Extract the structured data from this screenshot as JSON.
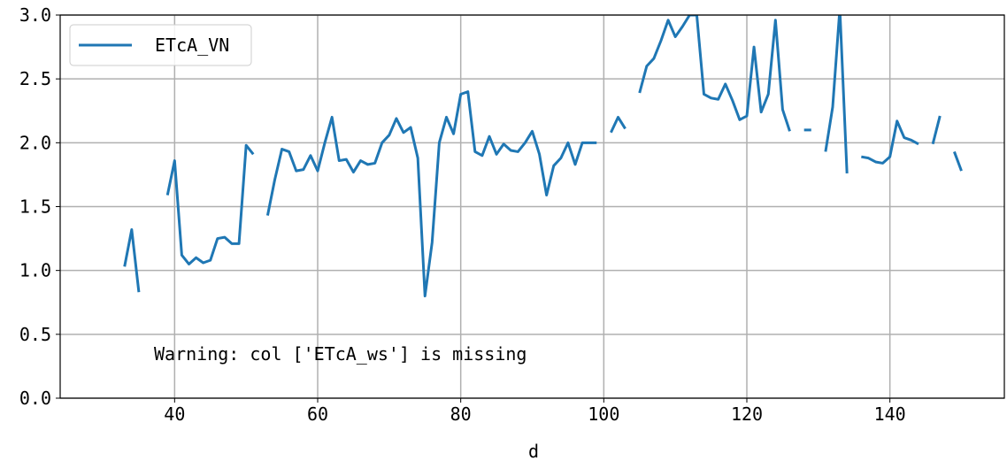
{
  "chart_data": {
    "type": "line",
    "xlabel": "d",
    "ylabel": "",
    "xlim": [
      24,
      156
    ],
    "ylim": [
      0.0,
      3.0
    ],
    "xticks": [
      40,
      60,
      80,
      100,
      120,
      140
    ],
    "yticks": [
      0.0,
      0.5,
      1.0,
      1.5,
      2.0,
      2.5,
      3.0
    ],
    "ytick_labels": [
      "0.0",
      "0.5",
      "1.0",
      "1.5",
      "2.0",
      "2.5",
      "3.0"
    ],
    "grid": true,
    "legend_position": "top-left",
    "annotation": "Warning: col ['ETcA_ws'] is missing",
    "series": [
      {
        "name": "ETcA_VN",
        "color": "#1f77b4",
        "points": [
          [
            33,
            1.03
          ],
          [
            34,
            1.32
          ],
          [
            35,
            0.83
          ],
          [
            36,
            null
          ],
          [
            37,
            null
          ],
          [
            38,
            null
          ],
          [
            39,
            1.59
          ],
          [
            40,
            1.86
          ],
          [
            41,
            1.12
          ],
          [
            42,
            1.05
          ],
          [
            43,
            1.1
          ],
          [
            44,
            1.06
          ],
          [
            45,
            1.08
          ],
          [
            46,
            1.25
          ],
          [
            47,
            1.26
          ],
          [
            48,
            1.21
          ],
          [
            49,
            1.21
          ],
          [
            50,
            1.98
          ],
          [
            51,
            1.91
          ],
          [
            52,
            null
          ],
          [
            53,
            1.43
          ],
          [
            54,
            1.71
          ],
          [
            55,
            1.95
          ],
          [
            56,
            1.93
          ],
          [
            57,
            1.78
          ],
          [
            58,
            1.79
          ],
          [
            59,
            1.9
          ],
          [
            60,
            1.78
          ],
          [
            61,
            2.0
          ],
          [
            62,
            2.2
          ],
          [
            63,
            1.86
          ],
          [
            64,
            1.87
          ],
          [
            65,
            1.77
          ],
          [
            66,
            1.86
          ],
          [
            67,
            1.83
          ],
          [
            68,
            1.84
          ],
          [
            69,
            2.0
          ],
          [
            70,
            2.06
          ],
          [
            71,
            2.19
          ],
          [
            72,
            2.08
          ],
          [
            73,
            2.12
          ],
          [
            74,
            1.88
          ],
          [
            75,
            0.8
          ],
          [
            76,
            1.22
          ],
          [
            77,
            2.0
          ],
          [
            78,
            2.2
          ],
          [
            79,
            2.07
          ],
          [
            80,
            2.38
          ],
          [
            81,
            2.4
          ],
          [
            82,
            1.93
          ],
          [
            83,
            1.9
          ],
          [
            84,
            2.05
          ],
          [
            85,
            1.91
          ],
          [
            86,
            1.99
          ],
          [
            87,
            1.94
          ],
          [
            88,
            1.93
          ],
          [
            89,
            2.0
          ],
          [
            90,
            2.09
          ],
          [
            91,
            1.91
          ],
          [
            92,
            1.59
          ],
          [
            93,
            1.82
          ],
          [
            94,
            1.88
          ],
          [
            95,
            2.0
          ],
          [
            96,
            1.83
          ],
          [
            97,
            2.0
          ],
          [
            98,
            2.0
          ],
          [
            99,
            2.0
          ],
          [
            100,
            null
          ],
          [
            101,
            2.08
          ],
          [
            102,
            2.2
          ],
          [
            103,
            2.11
          ],
          [
            104,
            null
          ],
          [
            105,
            2.39
          ],
          [
            106,
            2.6
          ],
          [
            107,
            2.66
          ],
          [
            108,
            2.8
          ],
          [
            109,
            2.96
          ],
          [
            110,
            2.83
          ],
          [
            111,
            2.91
          ],
          [
            112,
            3.0
          ],
          [
            113,
            3.0
          ],
          [
            114,
            2.38
          ],
          [
            115,
            2.35
          ],
          [
            116,
            2.34
          ],
          [
            117,
            2.46
          ],
          [
            118,
            2.33
          ],
          [
            119,
            2.18
          ],
          [
            120,
            2.21
          ],
          [
            121,
            2.75
          ],
          [
            122,
            2.24
          ],
          [
            123,
            2.38
          ],
          [
            124,
            2.96
          ],
          [
            125,
            2.26
          ],
          [
            126,
            2.09
          ],
          [
            127,
            null
          ],
          [
            128,
            2.1
          ],
          [
            129,
            2.1
          ],
          [
            130,
            null
          ],
          [
            131,
            1.93
          ],
          [
            132,
            2.28
          ],
          [
            133,
            3.05
          ],
          [
            134,
            1.76
          ],
          [
            135,
            null
          ],
          [
            136,
            1.89
          ],
          [
            137,
            1.88
          ],
          [
            138,
            1.85
          ],
          [
            139,
            1.84
          ],
          [
            140,
            1.89
          ],
          [
            141,
            2.17
          ],
          [
            142,
            2.04
          ],
          [
            143,
            2.02
          ],
          [
            144,
            1.99
          ],
          [
            145,
            null
          ],
          [
            146,
            1.99
          ],
          [
            147,
            2.21
          ],
          [
            148,
            null
          ],
          [
            149,
            1.93
          ],
          [
            150,
            1.78
          ]
        ]
      }
    ]
  }
}
